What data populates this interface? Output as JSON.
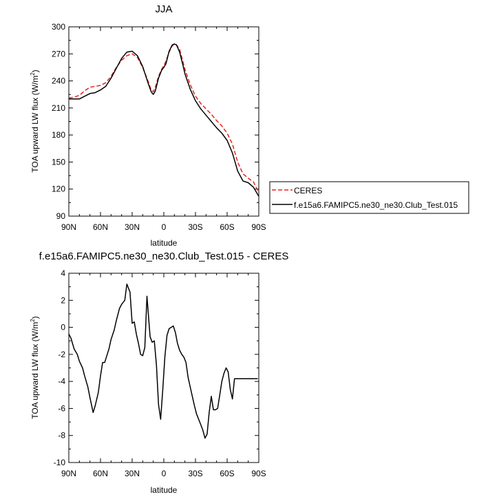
{
  "chart_data": [
    {
      "type": "line",
      "title": "JJA",
      "xlabel": "latitude",
      "ylabel": "TOA upward LW flux (W/m",
      "ylabel_sup": "2",
      "ylabel_end": ")",
      "xlim": [
        90,
        -90
      ],
      "ylim": [
        90,
        300
      ],
      "xticks": [
        90,
        60,
        30,
        0,
        -30,
        -60,
        -90
      ],
      "xticklabels": [
        "90N",
        "60N",
        "30N",
        "0",
        "30S",
        "60S",
        "90S"
      ],
      "yticks": [
        90,
        120,
        150,
        180,
        210,
        240,
        270,
        300
      ],
      "yticklabels": [
        "90",
        "120",
        "150",
        "180",
        "210",
        "240",
        "270",
        "300"
      ],
      "legend_position": "right",
      "series": [
        {
          "name": "CERES",
          "color": "#e8211b",
          "dash": "dashed",
          "x": [
            90,
            85,
            80,
            75,
            70,
            65,
            60,
            55,
            50,
            45,
            40,
            35,
            30,
            25,
            20,
            15,
            12,
            10,
            8,
            5,
            2,
            0,
            -2,
            -5,
            -8,
            -10,
            -12,
            -15,
            -18,
            -20,
            -25,
            -30,
            -35,
            -40,
            -45,
            -50,
            -55,
            -60,
            -65,
            -70,
            -75,
            -80,
            -85,
            -90
          ],
          "y": [
            221,
            222,
            224,
            229,
            233,
            234,
            235,
            238,
            245,
            255,
            263,
            268,
            270,
            266,
            255,
            240,
            230,
            228,
            233,
            245,
            253,
            257,
            262,
            272,
            279,
            281,
            280,
            275,
            262,
            253,
            236,
            223,
            215,
            209,
            203,
            196,
            190,
            182,
            170,
            150,
            137,
            132,
            128,
            116
          ]
        },
        {
          "name": "f.e15a6.FAMIPC5.ne30_ne30.Club_Test.015",
          "color": "#000000",
          "dash": "solid",
          "x": [
            90,
            85,
            80,
            75,
            70,
            65,
            60,
            55,
            50,
            45,
            40,
            35,
            30,
            25,
            20,
            15,
            12,
            10,
            8,
            5,
            2,
            0,
            -2,
            -5,
            -8,
            -10,
            -12,
            -15,
            -18,
            -20,
            -25,
            -30,
            -35,
            -40,
            -45,
            -50,
            -55,
            -60,
            -65,
            -70,
            -75,
            -80,
            -85,
            -90
          ],
          "y": [
            220,
            220,
            220,
            223,
            226,
            227,
            230,
            234,
            243,
            254,
            265,
            272,
            273,
            268,
            256,
            238,
            228,
            225,
            229,
            243,
            252,
            255,
            259,
            273,
            280,
            281,
            280,
            272,
            258,
            248,
            231,
            218,
            209,
            202,
            195,
            188,
            182,
            174,
            160,
            140,
            129,
            127,
            122,
            112
          ]
        }
      ]
    },
    {
      "type": "line",
      "title": "f.e15a6.FAMIPC5.ne30_ne30.Club_Test.015 - CERES",
      "xlabel": "latitude",
      "ylabel": "TOA upward LW flux (W/m",
      "ylabel_sup": "2",
      "ylabel_end": ")",
      "xlim": [
        90,
        -90
      ],
      "ylim": [
        -10,
        4
      ],
      "xticks": [
        90,
        60,
        30,
        0,
        -30,
        -60,
        -90
      ],
      "xticklabels": [
        "90N",
        "60N",
        "30N",
        "0",
        "30S",
        "60S",
        "90S"
      ],
      "yticks": [
        4,
        2,
        0,
        -2,
        -4,
        -6,
        -8,
        -10
      ],
      "yticklabels": [
        "4",
        "2",
        "0",
        "-2",
        "-4",
        "-6",
        "-8",
        "-10"
      ],
      "series": [
        {
          "color": "#000000",
          "x": [
            90,
            88,
            85,
            82,
            80,
            77,
            75,
            72,
            70,
            67,
            65,
            62,
            60,
            58,
            56,
            54,
            52,
            50,
            47,
            45,
            42,
            40,
            37,
            35,
            32,
            30,
            28,
            26,
            24,
            22,
            20,
            18,
            16,
            13,
            11,
            9,
            7,
            5,
            3,
            1,
            -1,
            -3,
            -5,
            -7,
            -9,
            -11,
            -13,
            -15,
            -17,
            -19,
            -21,
            -23,
            -25,
            -27,
            -29,
            -31,
            -33,
            -35,
            -37,
            -39,
            -41,
            -43,
            -45,
            -47,
            -49,
            -51,
            -53,
            -55,
            -57,
            -59,
            -61,
            -63,
            -65,
            -67,
            -69,
            -71,
            -73,
            -75,
            -77,
            -79,
            -81,
            -83,
            -85,
            -87,
            -89
          ],
          "y": [
            -0.5,
            -0.8,
            -1.6,
            -2.0,
            -2.5,
            -3.0,
            -3.6,
            -4.4,
            -5.2,
            -6.3,
            -5.8,
            -4.8,
            -3.6,
            -2.6,
            -2.6,
            -2.1,
            -1.6,
            -0.9,
            -0.2,
            0.5,
            1.4,
            1.7,
            2.0,
            3.2,
            2.6,
            0.3,
            0.4,
            -0.5,
            -1.2,
            -2.0,
            -2.1,
            -1.5,
            2.3,
            -0.7,
            -1.1,
            -1.0,
            -2.8,
            -5.7,
            -6.8,
            -4.6,
            -2.2,
            -0.6,
            -0.1,
            0.0,
            0.1,
            -0.4,
            -1.2,
            -1.7,
            -2.0,
            -2.2,
            -2.6,
            -3.7,
            -4.4,
            -5.1,
            -5.8,
            -6.4,
            -6.8,
            -7.2,
            -7.6,
            -8.2,
            -7.9,
            -6.3,
            -5.1,
            -6.1,
            -6.1,
            -6.0,
            -5.0,
            -4.0,
            -3.4,
            -3.0,
            -3.3,
            -4.6,
            -5.3,
            -3.8,
            -3.8,
            -3.8,
            -3.8,
            -3.8,
            -3.8,
            -3.8,
            -3.8,
            -3.8,
            -3.8,
            -3.8,
            -3.8
          ]
        }
      ]
    }
  ]
}
